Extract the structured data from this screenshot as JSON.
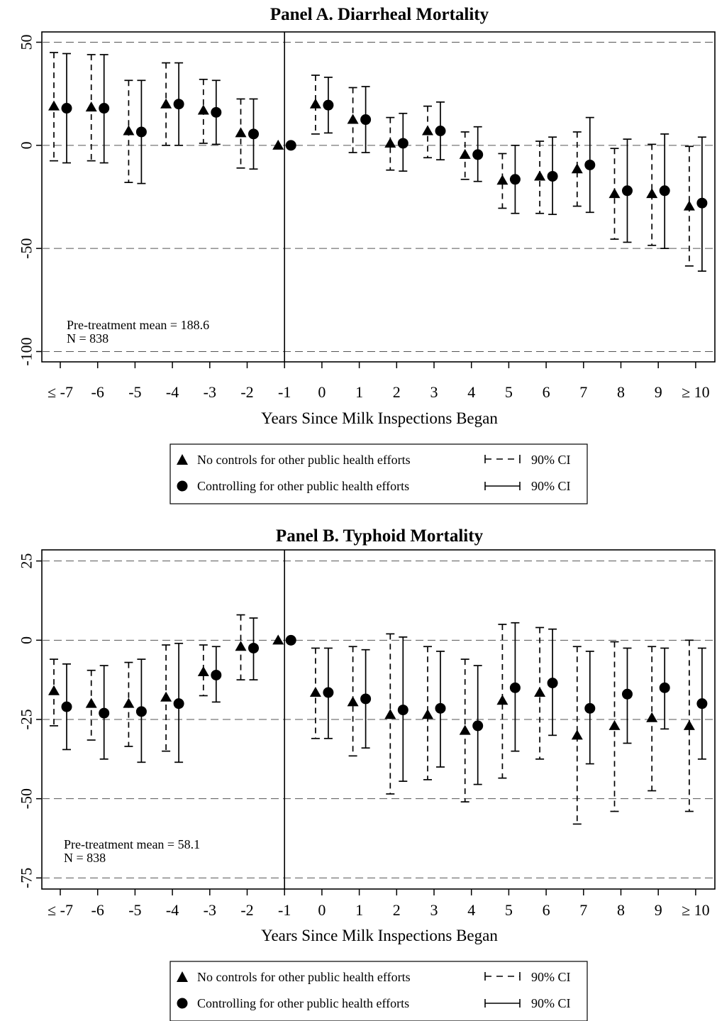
{
  "chart_data": [
    {
      "type": "scatter",
      "title": "Panel A. Diarrheal Mortality",
      "xlabel": "Years Since Milk Inspections Began",
      "ylabel": "",
      "categories": [
        "≤ -7",
        "-6",
        "-5",
        "-4",
        "-3",
        "-2",
        "-1",
        "0",
        "1",
        "2",
        "3",
        "4",
        "5",
        "6",
        "7",
        "8",
        "9",
        "≥ 10"
      ],
      "y_ticks": [
        "50",
        "0",
        "-50",
        "-100"
      ],
      "ylim": [
        -105,
        55
      ],
      "event_line_at": "-1",
      "reference_lines": [
        50,
        0,
        -50,
        -100
      ],
      "note": [
        "Pre-treatment mean = 188.6",
        "N = 838"
      ],
      "ci_level": "90% CI",
      "series": [
        {
          "name": "No controls for other public health efforts",
          "marker": "triangle",
          "ci_style": "dashed",
          "values": [
            19,
            18.5,
            7,
            20,
            17,
            6,
            0,
            20,
            12.5,
            1,
            7,
            -4.5,
            -17,
            -15,
            -11.5,
            -23.5,
            -23.5,
            -29.5
          ],
          "ci_low": [
            -7.5,
            -7.5,
            -18,
            0,
            1,
            -11,
            null,
            5.5,
            -3.5,
            -12,
            -6,
            -16.5,
            -30.5,
            -33,
            -29.5,
            -45.5,
            -48.5,
            -58.5
          ],
          "ci_high": [
            45,
            44,
            31.5,
            40,
            32,
            22.5,
            null,
            34,
            28,
            13.5,
            19,
            6.5,
            -4,
            2,
            6.5,
            -1.5,
            0.5,
            -0.5
          ]
        },
        {
          "name": "Controlling for other public health efforts",
          "marker": "circle",
          "ci_style": "solid",
          "values": [
            18,
            18,
            6.5,
            20,
            16,
            5.5,
            0,
            19.5,
            12.5,
            1,
            7,
            -4.5,
            -16.5,
            -15,
            -9.5,
            -22,
            -22,
            -28
          ],
          "ci_low": [
            -8.5,
            -8.5,
            -18.5,
            0,
            0.5,
            -11.5,
            null,
            6,
            -3.5,
            -12.5,
            -7,
            -17.5,
            -33,
            -33.5,
            -32.5,
            -47,
            -50,
            -61
          ],
          "ci_high": [
            44.5,
            44,
            31.5,
            40,
            31.5,
            22.5,
            null,
            33,
            28.5,
            15.5,
            21,
            9,
            0,
            4,
            13.5,
            3,
            5.5,
            4
          ]
        }
      ]
    },
    {
      "type": "scatter",
      "title": "Panel B. Typhoid Mortality",
      "xlabel": "Years Since Milk Inspections Began",
      "ylabel": "",
      "categories": [
        "≤ -7",
        "-6",
        "-5",
        "-4",
        "-3",
        "-2",
        "-1",
        "0",
        "1",
        "2",
        "3",
        "4",
        "5",
        "6",
        "7",
        "8",
        "9",
        "≥ 10"
      ],
      "y_ticks": [
        "25",
        "0",
        "-25",
        "-50",
        "-75"
      ],
      "ylim": [
        -78.5,
        28.5
      ],
      "event_line_at": "-1",
      "reference_lines": [
        25,
        0,
        -25,
        -50,
        -75
      ],
      "note": [
        "Pre-treatment mean = 58.1",
        "N = 838"
      ],
      "ci_level": "90% CI",
      "series": [
        {
          "name": "No controls for other public health efforts",
          "marker": "triangle",
          "ci_style": "dashed",
          "values": [
            -16,
            -20,
            -20,
            -18,
            -10,
            -2,
            0,
            -16.5,
            -19.5,
            -23.5,
            -23.5,
            -28.5,
            -19,
            -16.5,
            -30,
            -27,
            -24.5,
            -27
          ],
          "ci_low": [
            -27,
            -31.5,
            -33.5,
            -35,
            -17.5,
            -12.5,
            null,
            -31,
            -36.5,
            -48.5,
            -44,
            -51,
            -43.5,
            -37.5,
            -58,
            -54,
            -47.5,
            -54
          ],
          "ci_high": [
            -6,
            -9.5,
            -7,
            -1.5,
            -1.5,
            8,
            null,
            -2.5,
            -2,
            2,
            -2,
            -6,
            5,
            4,
            -2,
            -0.5,
            -2,
            0
          ]
        },
        {
          "name": "Controlling for other public health efforts",
          "marker": "circle",
          "ci_style": "solid",
          "values": [
            -21,
            -23,
            -22.5,
            -20,
            -11,
            -2.5,
            0,
            -16.5,
            -18.5,
            -22,
            -21.5,
            -27,
            -15,
            -13.5,
            -21.5,
            -17,
            -15,
            -20
          ],
          "ci_low": [
            -34.5,
            -37.5,
            -38.5,
            -38.5,
            -19.5,
            -12.5,
            null,
            -31,
            -34,
            -44.5,
            -40,
            -45.5,
            -35,
            -30,
            -39,
            -32.5,
            -28,
            -37.5
          ],
          "ci_high": [
            -7.5,
            -8,
            -6,
            -1,
            -2,
            7,
            null,
            -2.5,
            -3,
            1,
            -3.5,
            -8,
            5.5,
            3.5,
            -3.5,
            -2.5,
            -2.5,
            -2.5
          ]
        }
      ]
    }
  ]
}
